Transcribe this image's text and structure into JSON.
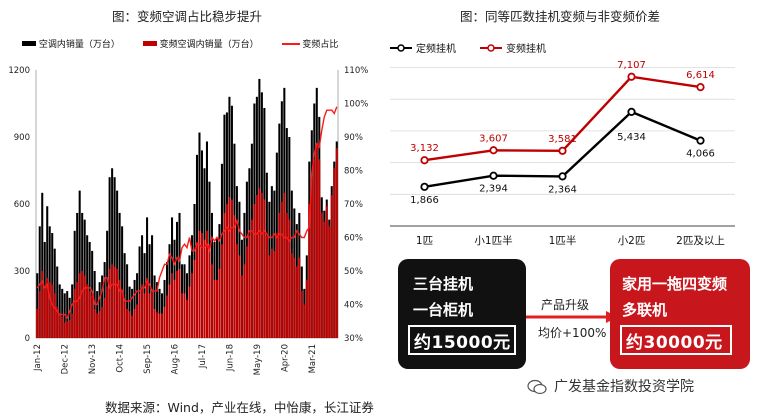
{
  "left": {
    "title": "图：变频空调占比稳步提升",
    "legend": [
      "空调内销量（万台）",
      "变频空调内销量（万台）",
      "变频占比"
    ],
    "y_ticks": [
      "0",
      "300",
      "600",
      "900",
      "1200"
    ],
    "y2_ticks": [
      "30%",
      "40%",
      "50%",
      "60%",
      "70%",
      "80%",
      "90%",
      "100%",
      "110%"
    ],
    "x_ticks": [
      "Jan-12",
      "Dec-12",
      "Nov-13",
      "Oct-14",
      "Sep-15",
      "Aug-16",
      "Jul-17",
      "Jun-18",
      "May-19",
      "Apr-20",
      "Mar-21"
    ]
  },
  "right": {
    "title": "图：同等匹数挂机变频与非变频价差",
    "legend": [
      "定频挂机",
      "变频挂机"
    ],
    "categories": [
      "1匹",
      "小1匹半",
      "1匹半",
      "小2匹",
      "2匹及以上"
    ],
    "fixed_labels": [
      "1,866",
      "2,394",
      "2,364",
      "5,434",
      "4,066"
    ],
    "inverter_labels": [
      "3,132",
      "3,607",
      "3,581",
      "7,107",
      "6,614"
    ]
  },
  "bottom": {
    "left_box": [
      "三台挂机",
      "一台柜机",
      "约15000元"
    ],
    "upgrade_label": "产品升级",
    "price_change": "均价+100%",
    "right_box": [
      "家用一拖四变频",
      "多联机",
      "约30000元"
    ]
  },
  "source": "数据来源：Wind，产业在线，中怡康，长江证券",
  "watermark": "广发基金指数投资学院",
  "colors": {
    "black": "#000000",
    "red": "#c00000",
    "line": "#ff1a1a",
    "box_black": "#111111",
    "box_red": "#c8161d",
    "grid": "#d9d9d9"
  },
  "chart_data": [
    {
      "type": "bar",
      "title": "图：变频空调占比稳步提升",
      "series": [
        {
          "name": "空调内销量（万台）",
          "values": [
            290,
            500,
            650,
            430,
            590,
            500,
            470,
            400,
            320,
            240,
            220,
            200,
            210,
            180,
            240,
            480,
            560,
            660,
            560,
            530,
            460,
            430,
            390,
            300,
            210,
            250,
            280,
            340,
            480,
            720,
            760,
            720,
            660,
            560,
            500,
            380,
            330,
            230,
            220,
            260,
            290,
            410,
            460,
            380,
            540,
            420,
            460,
            280,
            250,
            220,
            200,
            260,
            340,
            420,
            540,
            440,
            520,
            560,
            330,
            330,
            290,
            370,
            460,
            600,
            820,
            920,
            840,
            760,
            880,
            700,
            560,
            430,
            450,
            510,
            780,
            1000,
            1010,
            1080,
            1040,
            870,
            680,
            610,
            440,
            560,
            700,
            760,
            870,
            1050,
            1080,
            1160,
            1100,
            1030,
            740,
            610,
            680,
            660,
            830,
            960,
            1060,
            1120,
            940,
            900,
            660,
            580,
            510,
            560,
            320,
            220,
            370,
            790,
            930,
            1050,
            1120,
            990,
            630,
            570,
            620,
            530,
            680,
            790,
            880
          ]
        },
        {
          "name": "变频空调内销量（万台）",
          "values": [
            130,
            210,
            300,
            220,
            270,
            250,
            240,
            200,
            140,
            110,
            95,
            70,
            75,
            80,
            110,
            220,
            250,
            290,
            300,
            280,
            240,
            210,
            190,
            130,
            110,
            120,
            140,
            180,
            230,
            310,
            330,
            320,
            310,
            260,
            220,
            160,
            130,
            120,
            100,
            130,
            150,
            200,
            240,
            200,
            270,
            200,
            220,
            130,
            115,
            110,
            110,
            140,
            190,
            240,
            290,
            260,
            300,
            310,
            200,
            200,
            170,
            230,
            290,
            350,
            430,
            480,
            470,
            440,
            480,
            420,
            330,
            260,
            260,
            310,
            420,
            560,
            600,
            630,
            620,
            550,
            420,
            370,
            280,
            330,
            410,
            460,
            530,
            600,
            640,
            670,
            650,
            620,
            460,
            370,
            400,
            390,
            470,
            560,
            610,
            650,
            560,
            530,
            380,
            360,
            320,
            360,
            210,
            150,
            260,
            600,
            720,
            800,
            860,
            800,
            560,
            520,
            590,
            500,
            640,
            760,
            850
          ]
        },
        {
          "name": "变频占比",
          "values": [
            45,
            46,
            47,
            45,
            46,
            42,
            40,
            39,
            38,
            37,
            37,
            37,
            36,
            38,
            40,
            41,
            41,
            42,
            44,
            45,
            45,
            45,
            44,
            40,
            40,
            42,
            44,
            48,
            48,
            45,
            46,
            46,
            46,
            44,
            44,
            41,
            41,
            41,
            42,
            43,
            44,
            44,
            45,
            45,
            47,
            46,
            44,
            44,
            44,
            48,
            50,
            52,
            52,
            55,
            54,
            52,
            54,
            53,
            57,
            58,
            57,
            60,
            56,
            56,
            58,
            58,
            57,
            57,
            58,
            56,
            60,
            59,
            60,
            59,
            61,
            62,
            63,
            62,
            63,
            63,
            65,
            62,
            61,
            60,
            60,
            62,
            62,
            61,
            61,
            62,
            61,
            62,
            61,
            60,
            60,
            61,
            60,
            61,
            61,
            60,
            60,
            59,
            60,
            60,
            62,
            61,
            60,
            60,
            62,
            63,
            79,
            85,
            88,
            87,
            92,
            96,
            98,
            98,
            98,
            97,
            99
          ]
        }
      ],
      "ylim": [
        0,
        1200
      ],
      "y2lim": [
        30,
        110
      ],
      "legend_position": "top"
    },
    {
      "type": "line",
      "title": "图：同等匹数挂机变频与非变频价差",
      "categories": [
        "1匹",
        "小1匹半",
        "1匹半",
        "小2匹",
        "2匹及以上"
      ],
      "series": [
        {
          "name": "定频挂机",
          "values": [
            1866,
            2394,
            2364,
            5434,
            4066
          ]
        },
        {
          "name": "变频挂机",
          "values": [
            3132,
            3607,
            3581,
            7107,
            6614
          ]
        }
      ],
      "legend_position": "top-left"
    }
  ]
}
